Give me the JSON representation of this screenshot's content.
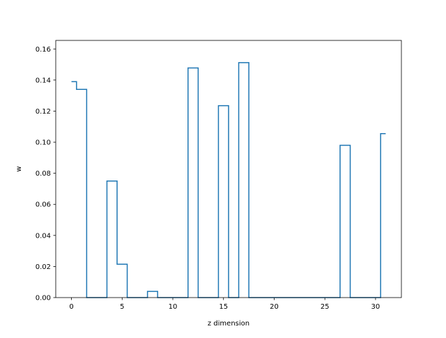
{
  "chart_data": {
    "type": "line",
    "drawstyle": "steps-mid",
    "xlabel": "z dimension",
    "ylabel": "w",
    "xlim": [
      -1.55,
      32.55
    ],
    "ylim": [
      0,
      0.1655
    ],
    "xticks": [
      0,
      5,
      10,
      15,
      20,
      25,
      30
    ],
    "xtick_labels": [
      "0",
      "5",
      "10",
      "15",
      "20",
      "25",
      "30"
    ],
    "yticks": [
      0.0,
      0.02,
      0.04,
      0.06,
      0.08,
      0.1,
      0.12,
      0.14,
      0.16
    ],
    "ytick_labels": [
      "0.00",
      "0.02",
      "0.04",
      "0.06",
      "0.08",
      "0.10",
      "0.12",
      "0.14",
      "0.16"
    ],
    "grid": false,
    "series": [
      {
        "color": "#1f77b4",
        "x": [
          0,
          1,
          2,
          3,
          4,
          5,
          6,
          7,
          8,
          9,
          10,
          11,
          12,
          13,
          14,
          15,
          16,
          17,
          18,
          19,
          20,
          21,
          22,
          23,
          24,
          25,
          26,
          27,
          28,
          29,
          30,
          31
        ],
        "y": [
          0.139,
          0.134,
          0.0,
          0.0,
          0.075,
          0.0215,
          0.0,
          0.0,
          0.004,
          0.0,
          0.0,
          0.0,
          0.1478,
          0.0,
          0.0,
          0.1235,
          0.0,
          0.1512,
          0.0,
          0.0,
          0.0,
          0.0,
          0.0,
          0.0,
          0.0,
          0.0,
          0.0,
          0.098,
          0.0,
          0.0,
          0.0,
          0.1055
        ]
      }
    ]
  }
}
